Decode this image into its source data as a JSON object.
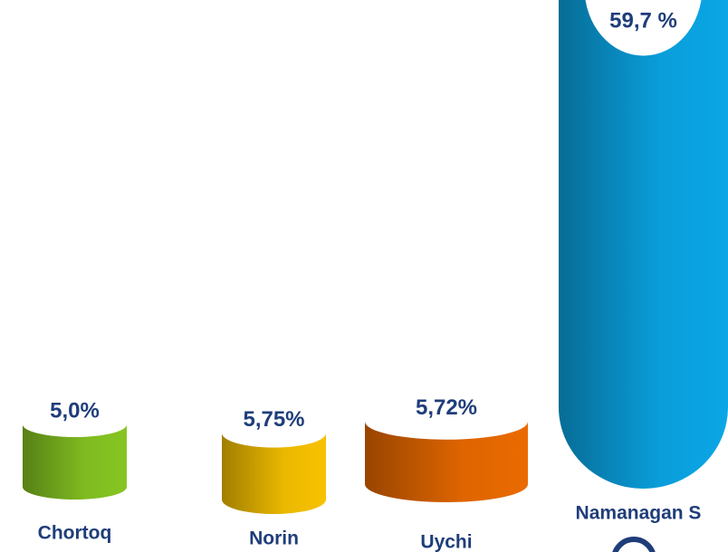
{
  "chart_data": {
    "type": "bar",
    "categories": [
      "Chortoq",
      "Norin",
      "Uychi",
      "Namanagan S"
    ],
    "values": [
      5.0,
      5.75,
      5.72,
      59.7
    ],
    "value_labels": [
      "5,0%",
      "5,75%",
      "5,72%",
      "59,7 %"
    ],
    "colors": [
      "#86c522",
      "#f7c200",
      "#ea6a00",
      "#0aa6e6"
    ]
  }
}
